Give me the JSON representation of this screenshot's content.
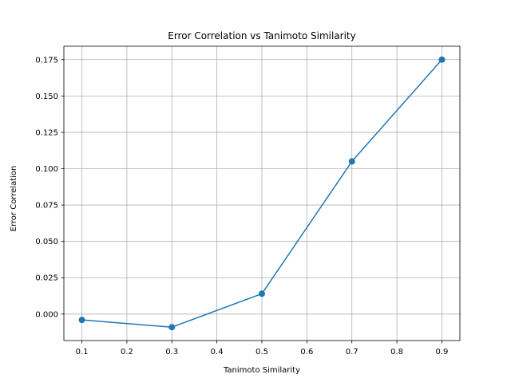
{
  "chart_data": {
    "type": "line",
    "title": "Error Correlation vs Tanimoto Similarity",
    "xlabel": "Tanimoto Similarity",
    "ylabel": "Error Correlation",
    "x": [
      0.1,
      0.3,
      0.5,
      0.7,
      0.9
    ],
    "series": [
      {
        "values": [
          -0.004,
          -0.009,
          0.014,
          0.105,
          0.175
        ],
        "color": "#1f77b4",
        "marker": "circle"
      }
    ],
    "xlim": [
      0.06,
      0.94
    ],
    "ylim": [
      -0.0182,
      0.1842
    ],
    "xticks": [
      0.1,
      0.2,
      0.3,
      0.4,
      0.5,
      0.6,
      0.7,
      0.8,
      0.9
    ],
    "xtick_labels": [
      "0.1",
      "0.2",
      "0.3",
      "0.4",
      "0.5",
      "0.6",
      "0.7",
      "0.8",
      "0.9"
    ],
    "yticks": [
      0.0,
      0.025,
      0.05,
      0.075,
      0.1,
      0.125,
      0.15,
      0.175
    ],
    "ytick_labels": [
      "0.000",
      "0.025",
      "0.050",
      "0.075",
      "0.100",
      "0.125",
      "0.150",
      "0.175"
    ],
    "grid": true,
    "grid_color": "#b0b0b0"
  }
}
